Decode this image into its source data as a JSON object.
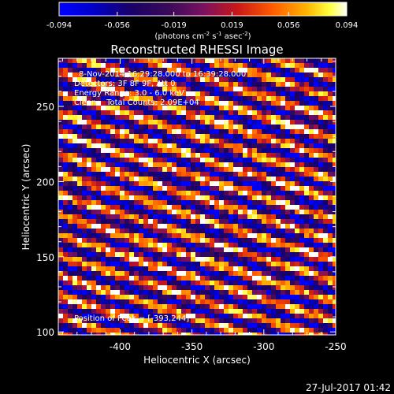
{
  "chart_data": {
    "type": "heatmap",
    "title": "Reconstructed RHESSI Image",
    "xlabel": "Heliocentric X (arcsec)",
    "ylabel": "Heliocentric Y (arcsec)",
    "xlim": [
      -443,
      -250
    ],
    "ylim": [
      98,
      282
    ],
    "xticks": [
      "-400",
      "-350",
      "-300",
      "-250"
    ],
    "xtick_values": [
      -400,
      -350,
      -300,
      -250
    ],
    "yticks": [
      "100",
      "150",
      "200",
      "250"
    ],
    "ytick_values": [
      100,
      150,
      200,
      250
    ],
    "colorbar": {
      "ticks": [
        "-0.094",
        "-0.056",
        "-0.019",
        "0.019",
        "0.056",
        "0.094"
      ],
      "tick_values": [
        -0.094,
        -0.056,
        -0.019,
        0.019,
        0.056,
        0.094
      ],
      "range": [
        -0.094,
        0.094
      ],
      "label_parts": {
        "a": "(photons cm",
        "b": "-2",
        "c": " s",
        "d": "-1",
        "e": " asec",
        "f": "-2",
        "g": ")"
      }
    },
    "annotations": {
      "time": "8-Nov-2014 16:29:28.000 to 16:39:28.000",
      "detectors": "Detectors: 3F 8F 9F, Att 0",
      "energy": "Energy Range: 3.0 - 6.0 keV",
      "clean": "Clean    Total Counts: 2.09E+04",
      "peak": "Position of Peak = [-393,244]"
    },
    "pattern": {
      "description": "diagonal fringe stripes",
      "stripe_spacing_arcsec": 13.5,
      "stripe_slope": 0.3,
      "peak_position": [
        -393,
        244
      ]
    }
  },
  "footer": {
    "timestamp": "27-Jul-2017 01:42"
  }
}
